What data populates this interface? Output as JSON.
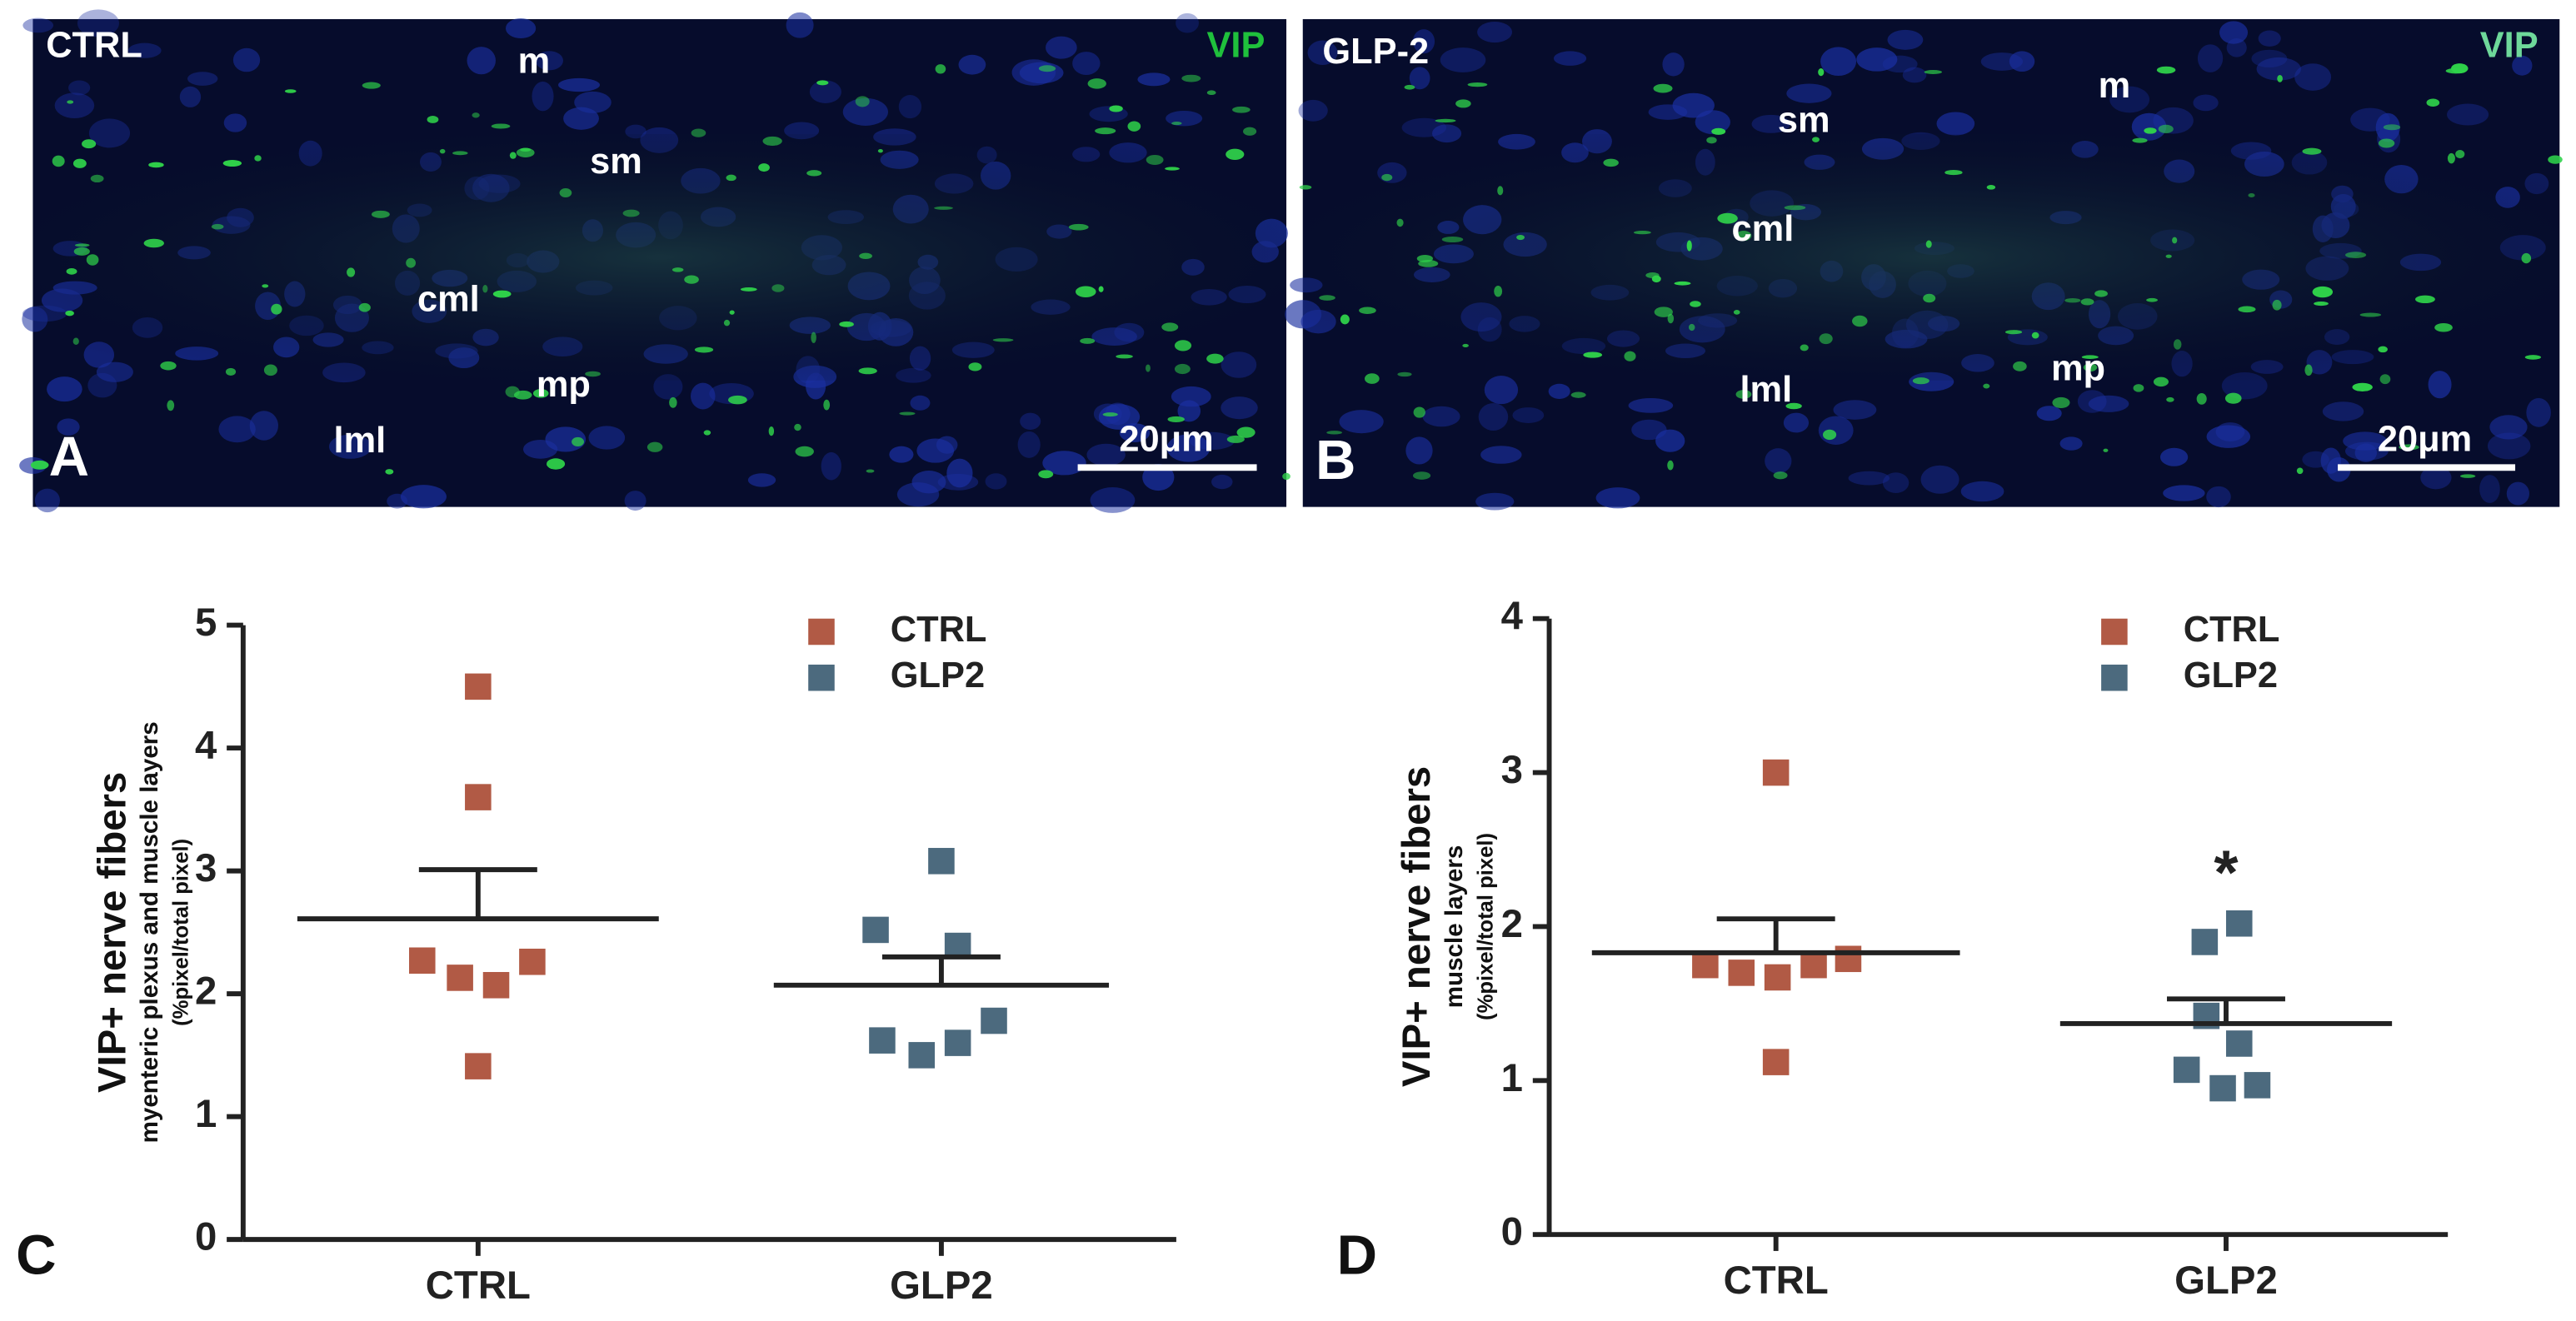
{
  "panels": [
    {
      "letter": "A",
      "group": "CTRL",
      "stain": "VIP",
      "labels": [
        "m",
        "sm",
        "cml",
        "mp",
        "lml"
      ],
      "scale_bar": "20μm"
    },
    {
      "letter": "B",
      "group": "GLP-2",
      "stain": "VIP",
      "labels": [
        "m",
        "sm",
        "cml",
        "mp",
        "lml"
      ],
      "scale_bar": "20μm"
    }
  ],
  "chart_data": [
    {
      "type": "scatter",
      "panel": "C",
      "ylabel": "VIP+ nerve fibers",
      "ylabel_sub": "myenteric plexus and muscle layers",
      "ylabel_unit": "(%pixel/total pixel)",
      "categories": [
        "CTRL",
        "GLP2"
      ],
      "series": [
        {
          "name": "CTRL",
          "color": "#b15a45",
          "values": [
            4.5,
            3.6,
            2.27,
            2.13,
            2.07,
            2.26,
            1.41
          ],
          "mean": 2.61,
          "sem": 0.4
        },
        {
          "name": "GLP2",
          "color": "#4c6a7e",
          "values": [
            3.08,
            2.52,
            2.39,
            1.62,
            1.5,
            1.6,
            1.78
          ],
          "mean": 2.07,
          "sem": 0.23
        }
      ],
      "ylim": [
        0,
        5
      ],
      "yticks": [
        0,
        1,
        2,
        3,
        4,
        5
      ],
      "legend": "upper right"
    },
    {
      "type": "scatter",
      "panel": "D",
      "ylabel": "VIP+ nerve fibers",
      "ylabel_sub": "muscle layers",
      "ylabel_unit": "(%pixel/total pixel)",
      "categories": [
        "CTRL",
        "GLP2"
      ],
      "series": [
        {
          "name": "CTRL",
          "color": "#b15a45",
          "values": [
            3.0,
            1.75,
            1.7,
            1.67,
            1.75,
            1.79,
            1.12
          ],
          "mean": 1.83,
          "sem": 0.22
        },
        {
          "name": "GLP2",
          "color": "#4c6a7e",
          "values": [
            1.9,
            2.02,
            1.42,
            1.24,
            1.07,
            0.95,
            0.97
          ],
          "mean": 1.37,
          "sem": 0.16
        }
      ],
      "annotation": "*",
      "ylim": [
        0,
        4
      ],
      "yticks": [
        0,
        1,
        2,
        3,
        4
      ],
      "legend": "upper right"
    }
  ]
}
